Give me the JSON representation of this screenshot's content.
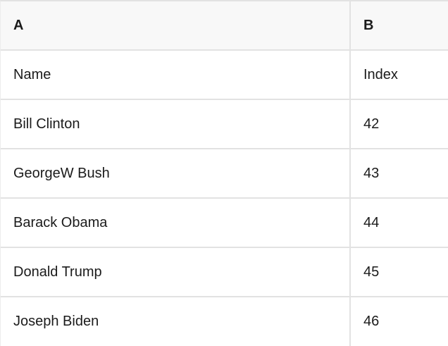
{
  "table": {
    "columns": [
      {
        "label": "A"
      },
      {
        "label": "B"
      }
    ],
    "field_row": {
      "name_label": "Name",
      "index_label": "Index"
    },
    "rows": [
      {
        "name": "Bill Clinton",
        "index": "42"
      },
      {
        "name": "GeorgeW Bush",
        "index": "43"
      },
      {
        "name": "Barack Obama",
        "index": "44"
      },
      {
        "name": "Donald Trump",
        "index": "45"
      },
      {
        "name": "Joseph Biden",
        "index": "46"
      }
    ]
  },
  "colors": {
    "header_bg": "#f8f8f8",
    "border": "#e2e2e2",
    "text": "#1b1b1b",
    "row_bg": "#ffffff"
  }
}
